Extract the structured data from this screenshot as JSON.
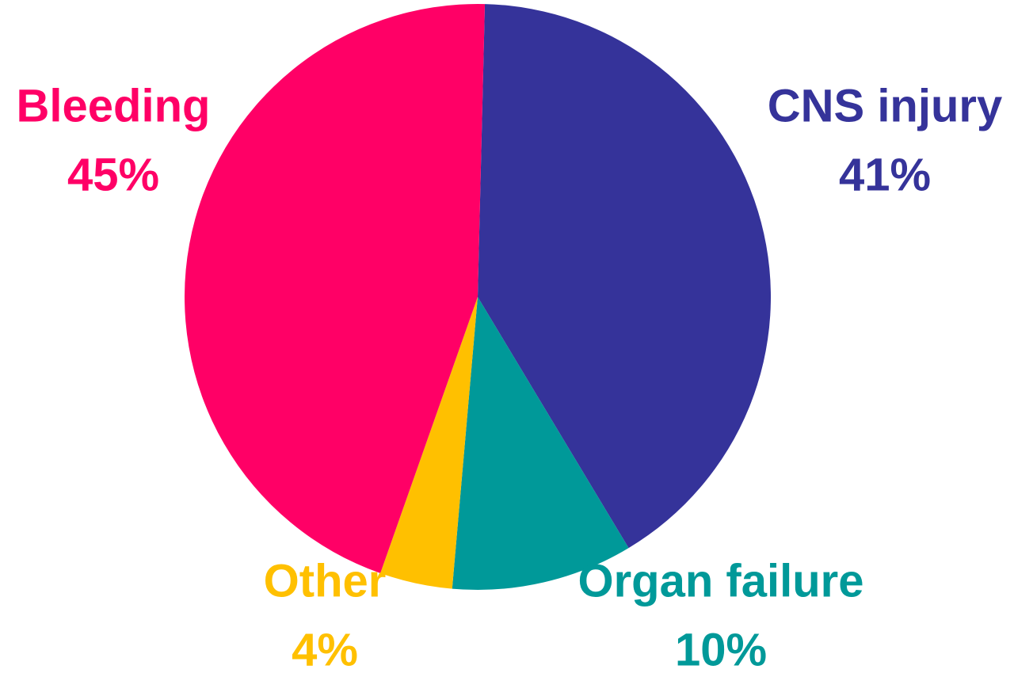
{
  "chart_data": {
    "type": "pie",
    "categories": [
      "CNS injury",
      "Organ failure",
      "Other",
      "Bleeding"
    ],
    "values": [
      41,
      10,
      4,
      45
    ],
    "value_labels": [
      "41%",
      "10%",
      "4%",
      "45%"
    ],
    "colors": [
      "#35339a",
      "#009999",
      "#ffc000",
      "#ff0066"
    ]
  }
}
